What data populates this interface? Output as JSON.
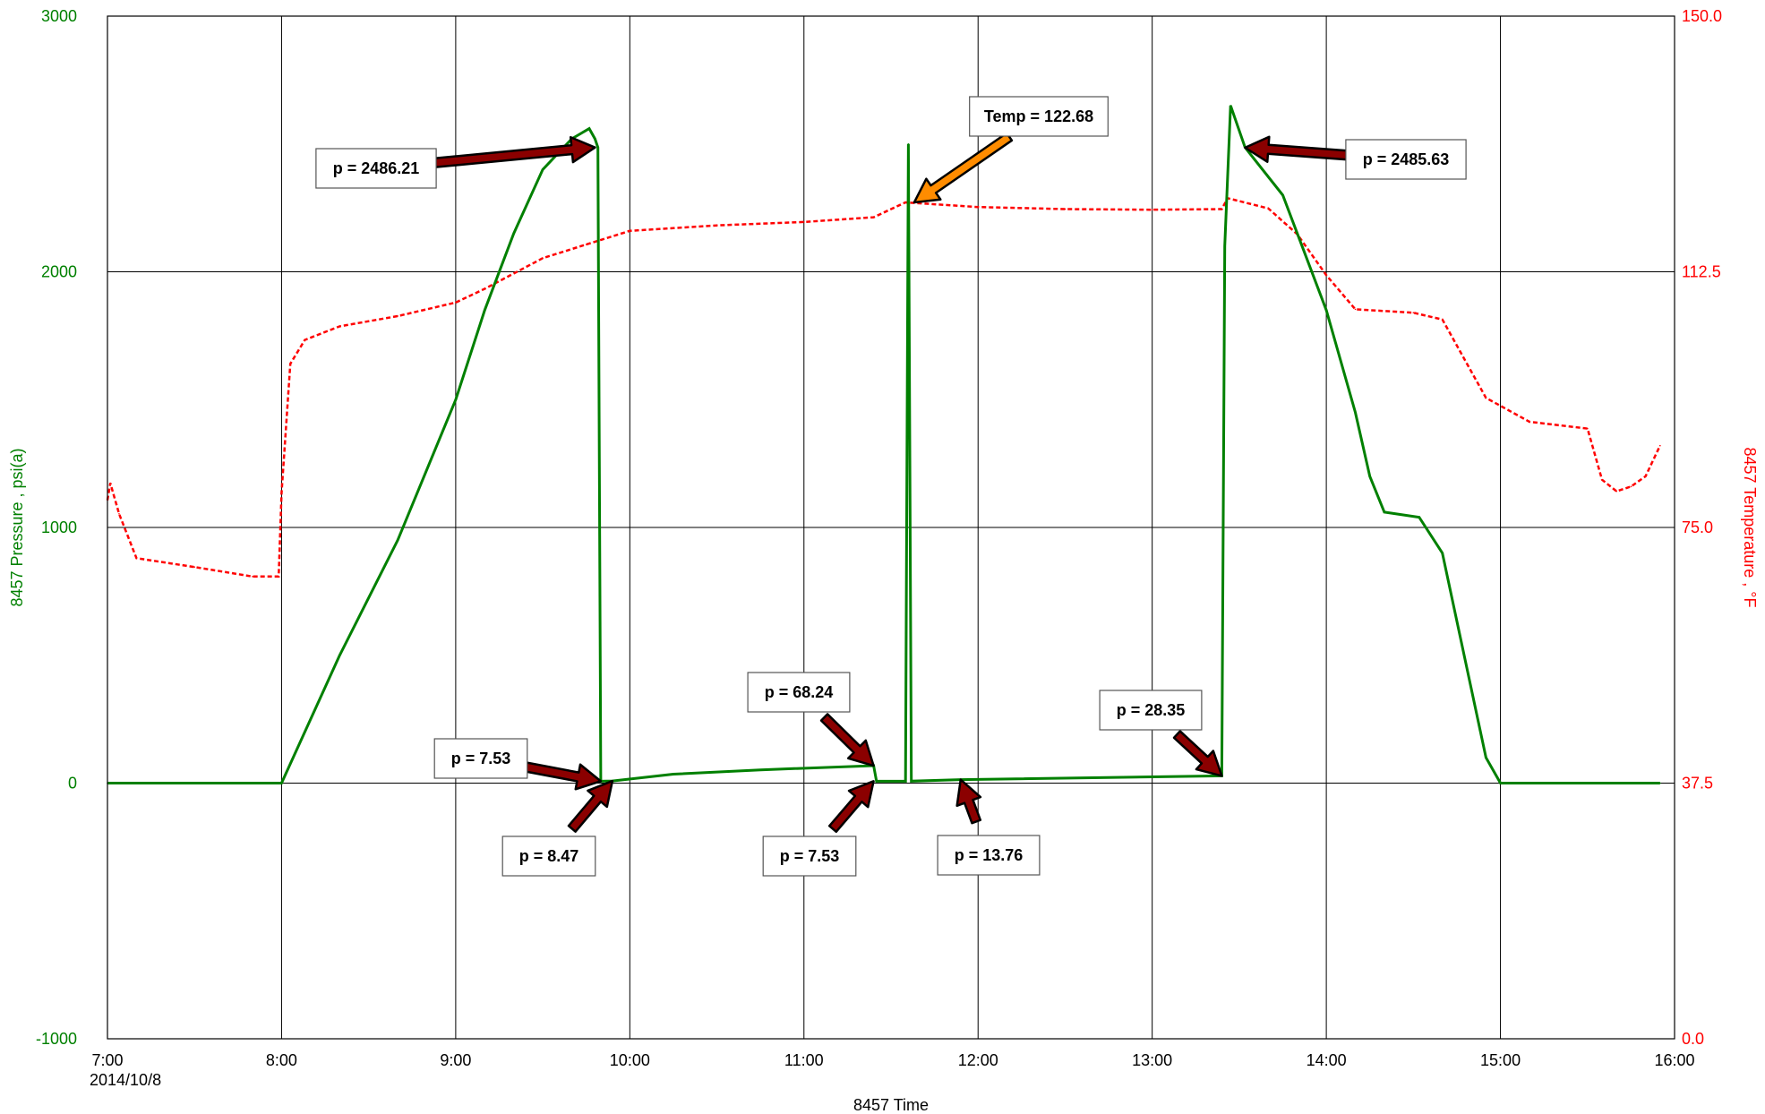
{
  "chart_data": {
    "type": "line",
    "title": "",
    "xlabel": "8457 Time",
    "x_date_label": "2014/10/8",
    "x_range": [
      "7:00",
      "16:00"
    ],
    "x_ticks": [
      "7:00",
      "8:00",
      "9:00",
      "10:00",
      "11:00",
      "12:00",
      "13:00",
      "14:00",
      "15:00",
      "16:00"
    ],
    "y_left": {
      "label": "8457 Pressure , psi(a)",
      "range": [
        -1000,
        3000
      ],
      "ticks": [
        "-1000",
        "0",
        "1000",
        "2000",
        "3000"
      ],
      "color": "#008000"
    },
    "y_right": {
      "label": "8457 Temperature , °F",
      "range": [
        0.0,
        150.0
      ],
      "ticks": [
        "0.0",
        "37.5",
        "75.0",
        "112.5",
        "150.0"
      ],
      "color": "#ff0000"
    },
    "grid": true,
    "series": [
      {
        "name": "8457 Pressure",
        "axis": "left",
        "color": "#008000",
        "style": "solid",
        "points": [
          [
            "7:00",
            0
          ],
          [
            "7:54",
            0
          ],
          [
            "8:00",
            0
          ],
          [
            "8:20",
            500
          ],
          [
            "8:40",
            950
          ],
          [
            "9:00",
            1500
          ],
          [
            "9:10",
            1850
          ],
          [
            "9:20",
            2150
          ],
          [
            "9:30",
            2400
          ],
          [
            "9:40",
            2520
          ],
          [
            "9:46",
            2560
          ],
          [
            "9:48",
            2520
          ],
          [
            "9:49",
            2486.21
          ],
          [
            "9:50",
            7.53
          ],
          [
            "9:54",
            8.47
          ],
          [
            "10:15",
            35
          ],
          [
            "10:45",
            52
          ],
          [
            "11:24",
            68.24
          ],
          [
            "11:25",
            7.53
          ],
          [
            "11:35",
            7.5
          ],
          [
            "11:36",
            2500
          ],
          [
            "11:37",
            7.6
          ],
          [
            "11:54",
            13.76
          ],
          [
            "13:24",
            28.35
          ],
          [
            "13:25",
            2100
          ],
          [
            "13:27",
            2650
          ],
          [
            "13:32",
            2486
          ],
          [
            "13:45",
            2300
          ],
          [
            "14:00",
            1850
          ],
          [
            "14:10",
            1450
          ],
          [
            "14:15",
            1200
          ],
          [
            "14:20",
            1060
          ],
          [
            "14:32",
            1040
          ],
          [
            "14:40",
            900
          ],
          [
            "14:55",
            100
          ],
          [
            "15:00",
            0
          ],
          [
            "15:55",
            0
          ]
        ]
      },
      {
        "name": "8457 Temperature",
        "axis": "right",
        "color": "#ff0000",
        "style": "dashed",
        "points": [
          [
            "7:00",
            79
          ],
          [
            "7:01",
            81.5
          ],
          [
            "7:04",
            77
          ],
          [
            "7:10",
            70.5
          ],
          [
            "7:30",
            69.2
          ],
          [
            "7:50",
            67.8
          ],
          [
            "7:59",
            67.8
          ],
          [
            "8:00",
            80
          ],
          [
            "8:03",
            99
          ],
          [
            "8:08",
            102.5
          ],
          [
            "8:20",
            104.5
          ],
          [
            "8:40",
            106
          ],
          [
            "9:00",
            108
          ],
          [
            "9:10",
            110
          ],
          [
            "9:30",
            114.5
          ],
          [
            "9:45",
            116.5
          ],
          [
            "10:00",
            118.5
          ],
          [
            "10:30",
            119.3
          ],
          [
            "11:00",
            119.8
          ],
          [
            "11:24",
            120.5
          ],
          [
            "11:35",
            122.68
          ],
          [
            "12:00",
            122
          ],
          [
            "12:30",
            121.7
          ],
          [
            "13:00",
            121.6
          ],
          [
            "13:24",
            121.7
          ],
          [
            "13:26",
            123.3
          ],
          [
            "13:40",
            121.8
          ],
          [
            "13:50",
            118
          ],
          [
            "14:00",
            112
          ],
          [
            "14:10",
            107
          ],
          [
            "14:30",
            106.5
          ],
          [
            "14:40",
            105.5
          ],
          [
            "14:55",
            94
          ],
          [
            "15:10",
            90.5
          ],
          [
            "15:30",
            89.5
          ],
          [
            "15:35",
            82
          ],
          [
            "15:40",
            80.3
          ],
          [
            "15:45",
            81
          ],
          [
            "15:50",
            82.5
          ],
          [
            "15:55",
            87
          ]
        ]
      }
    ],
    "annotations": [
      {
        "text": "p = 2486.21",
        "axis": "left",
        "target": [
          "9:48",
          2486.21
        ],
        "arrow_color": "#8b0000"
      },
      {
        "text": "Temp = 122.68",
        "axis": "right",
        "target": [
          "11:38",
          122.68
        ],
        "arrow_color": "#ff8c00"
      },
      {
        "text": "p = 2485.63",
        "axis": "left",
        "target": [
          "13:32",
          2485.63
        ],
        "arrow_color": "#8b0000"
      },
      {
        "text": "p = 7.53",
        "axis": "left",
        "target": [
          "9:50",
          7.53
        ],
        "arrow_color": "#8b0000"
      },
      {
        "text": "p = 8.47",
        "axis": "left",
        "target": [
          "9:54",
          8.47
        ],
        "arrow_color": "#8b0000"
      },
      {
        "text": "p = 68.24",
        "axis": "left",
        "target": [
          "11:24",
          68.24
        ],
        "arrow_color": "#8b0000"
      },
      {
        "text": "p = 7.53",
        "axis": "left",
        "target": [
          "11:24",
          7.53
        ],
        "arrow_color": "#8b0000"
      },
      {
        "text": "p = 13.76",
        "axis": "left",
        "target": [
          "11:54",
          13.76
        ],
        "arrow_color": "#8b0000"
      },
      {
        "text": "p = 28.35",
        "axis": "left",
        "target": [
          "13:24",
          28.35
        ],
        "arrow_color": "#8b0000"
      }
    ]
  }
}
